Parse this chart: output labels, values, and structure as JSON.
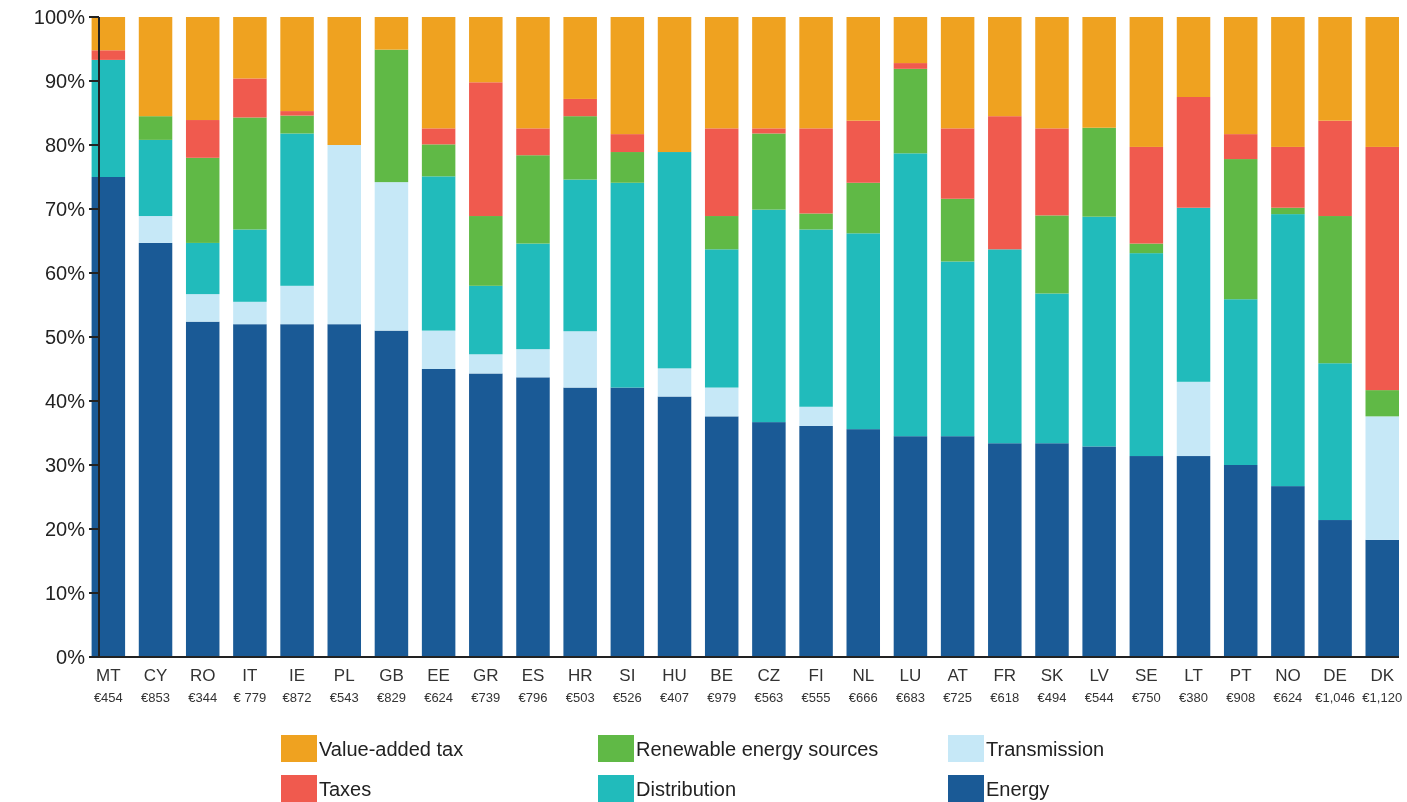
{
  "chart_data": {
    "type": "bar",
    "stacked": true,
    "categories": [
      "MT\n€454",
      "CY\n€853",
      "RO\n€344",
      "IT\n€ 779",
      "IE\n€872",
      "PL\n€543",
      "GB\n€829",
      "EE\n€624",
      "GR\n€739",
      "ES\n€796",
      "HR\n€503",
      "SI\n€526",
      "HU\n€407",
      "BE\n€979",
      "CZ\n€563",
      "FI\n€555",
      "NL\n€666",
      "LU\n€683",
      "AT\n€725",
      "FR\n€618",
      "SK\n€494",
      "LV\n€544",
      "SE\n€750",
      "LT\n€380",
      "PT\n€908",
      "NO\n€624",
      "DE\n€1,046",
      "DK\n€1,120"
    ],
    "series": [
      {
        "name": "Energy",
        "color": "#1a5a96",
        "values": [
          75,
          64.7,
          52.4,
          52,
          52,
          52,
          51,
          45,
          44.3,
          43.7,
          42.1,
          42.1,
          40.7,
          37.6,
          36.7,
          36.1,
          35.6,
          34.5,
          34.5,
          33.4,
          33.4,
          32.9,
          31.4,
          31.4,
          30,
          26.7,
          21.4,
          18.3
        ]
      },
      {
        "name": "Transmission",
        "color": "#c6e8f7",
        "values": [
          0,
          4.2,
          4.3,
          3.5,
          6,
          28,
          23.2,
          6,
          3,
          4.4,
          8.8,
          0,
          4.4,
          4.5,
          0,
          3,
          0,
          0,
          0,
          0,
          0,
          0,
          0,
          11.6,
          0,
          0,
          0,
          19.3
        ]
      },
      {
        "name": "Distribution",
        "color": "#21bbbb",
        "values": [
          18.3,
          11.9,
          8,
          11.3,
          23.8,
          0,
          0,
          24.1,
          10.7,
          16.5,
          23.7,
          32,
          33.8,
          21.6,
          33.2,
          27.7,
          30.6,
          44.2,
          27.3,
          30.3,
          23.4,
          35.9,
          31.7,
          27.2,
          25.9,
          42.5,
          24.5,
          0
        ]
      },
      {
        "name": "Renewable energy sources",
        "color": "#60b946",
        "values": [
          0,
          3.7,
          13.3,
          17.5,
          2.8,
          0,
          20.7,
          5,
          10.9,
          13.8,
          9.9,
          4.8,
          0,
          5.2,
          11.9,
          2.5,
          7.9,
          13.2,
          9.8,
          0,
          12.2,
          13.9,
          1.5,
          0,
          21.9,
          1,
          23,
          4.1
        ]
      },
      {
        "name": "Taxes",
        "color": "#f05a4e",
        "values": [
          1.5,
          0,
          5.9,
          6.1,
          0.7,
          0,
          0,
          2.5,
          20.9,
          4.2,
          2.7,
          2.8,
          0,
          13.7,
          0.8,
          13.3,
          9.7,
          0.9,
          11,
          20.8,
          13.6,
          0,
          15.1,
          17.3,
          3.9,
          9.5,
          14.9,
          38
        ]
      },
      {
        "name": "Value-added tax",
        "color": "#efa220",
        "values": [
          5.2,
          15.5,
          16.1,
          9.6,
          14.7,
          20,
          5.1,
          17.4,
          10.2,
          17.4,
          12.8,
          18.3,
          21.1,
          17.4,
          17.4,
          17.4,
          16.2,
          7.2,
          17.4,
          15.5,
          17.4,
          17.3,
          20.3,
          12.5,
          18.3,
          20.3,
          16.2,
          20.3
        ]
      }
    ],
    "ylim": [
      0,
      100
    ],
    "yticks": [
      {
        "value": 0,
        "label": "0%"
      },
      {
        "value": 10,
        "label": "10%"
      },
      {
        "value": 20,
        "label": "20%"
      },
      {
        "value": 30,
        "label": "30%"
      },
      {
        "value": 40,
        "label": "40%"
      },
      {
        "value": 50,
        "label": "50%"
      },
      {
        "value": 60,
        "label": "60%"
      },
      {
        "value": 70,
        "label": "70%"
      },
      {
        "value": 80,
        "label": "80%"
      },
      {
        "value": 90,
        "label": "90%"
      },
      {
        "value": 100,
        "label": "100%"
      }
    ],
    "grid": false,
    "legend": "bottom"
  }
}
